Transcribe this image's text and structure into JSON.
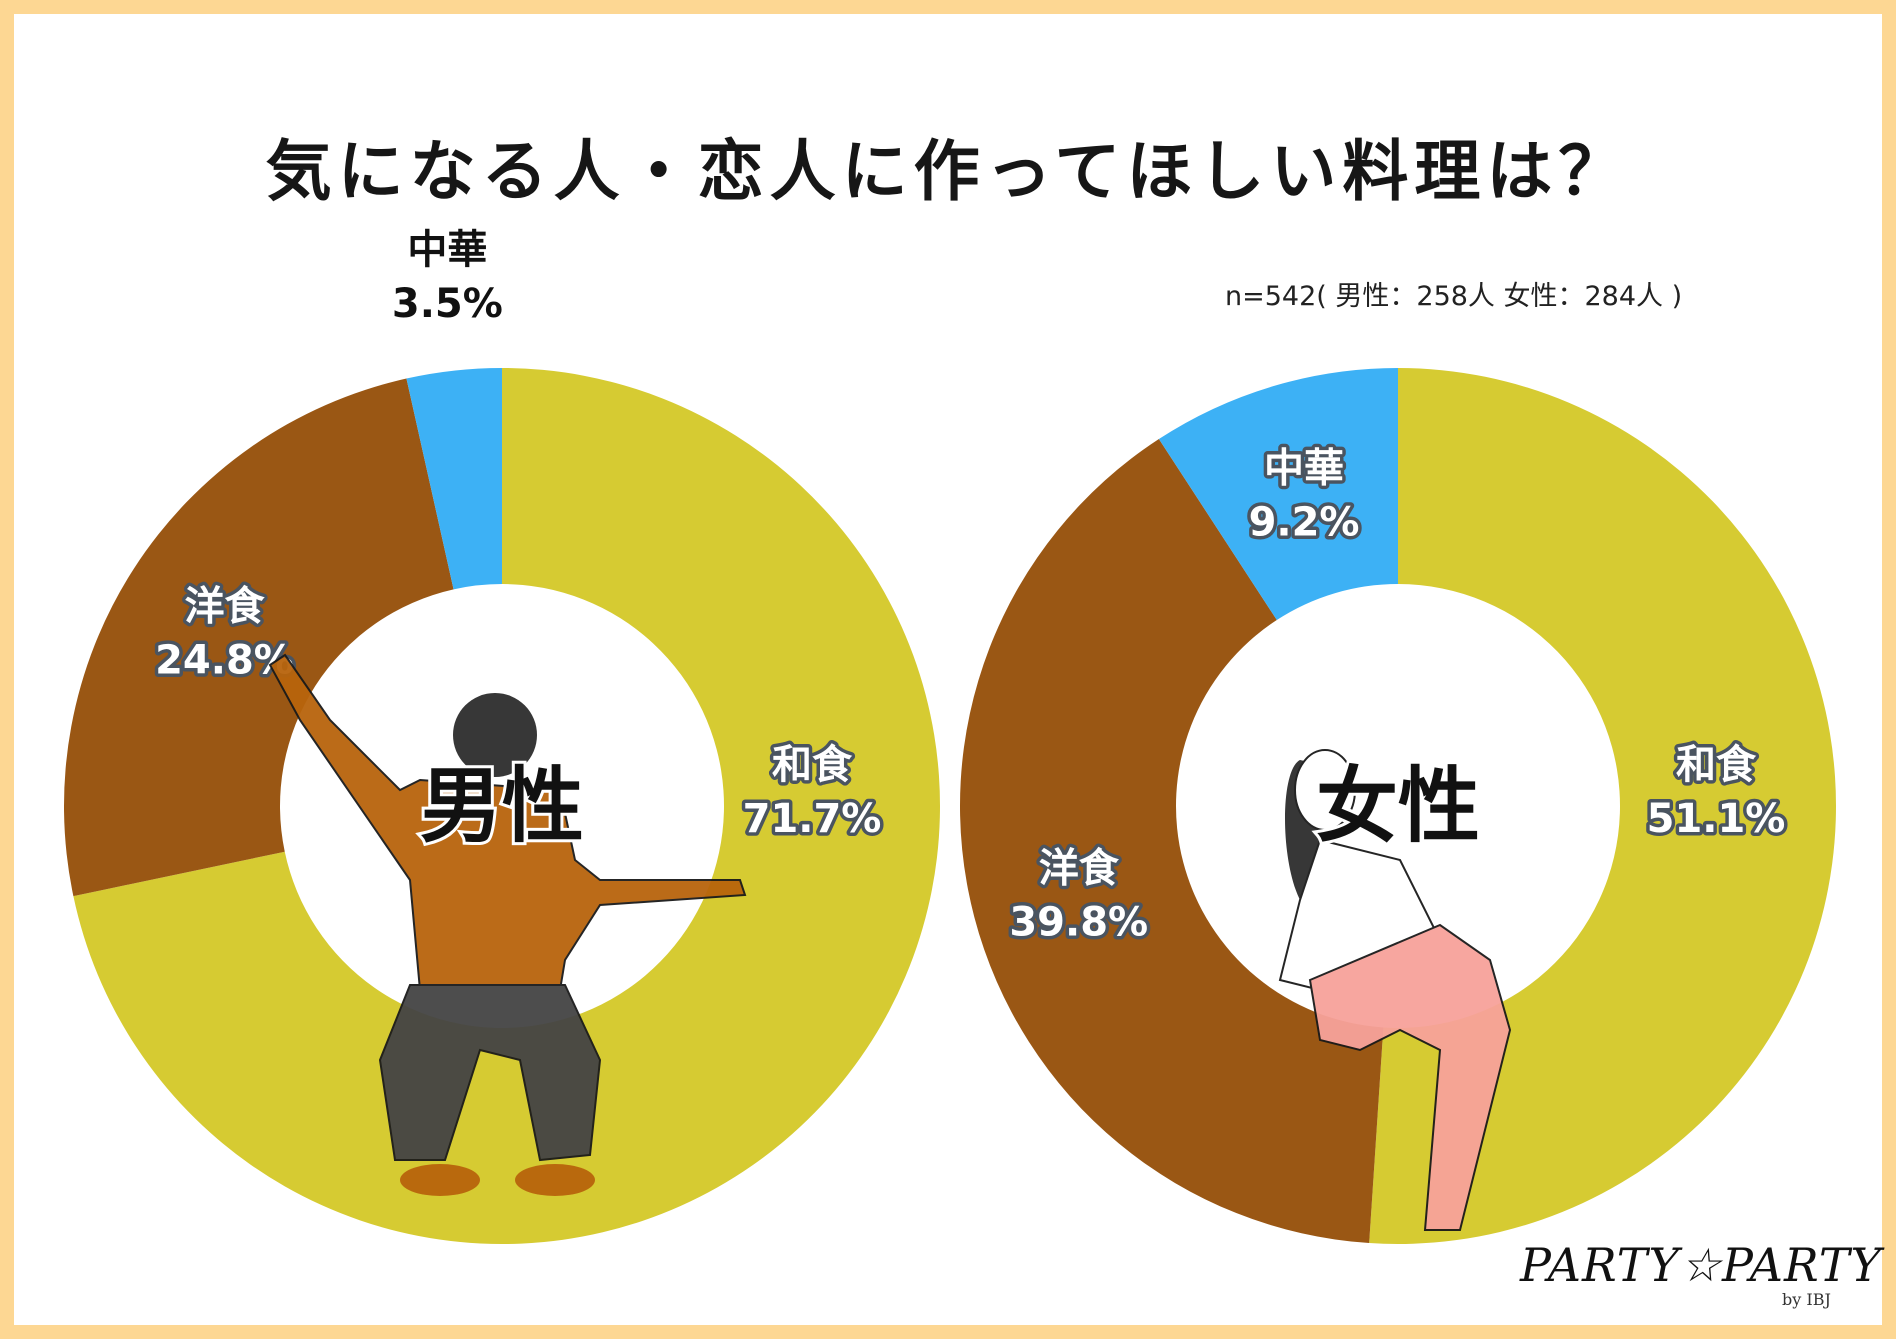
{
  "title": "気になる人・恋人に作ってほしい料理は？",
  "sample_note": "n=542( 男性：258人 女性：284人 )",
  "colors": {
    "washoku": "#d6cb32",
    "yoshoku": "#9a5714",
    "chuka": "#3db1f5"
  },
  "chart_data": [
    {
      "type": "pie",
      "center_label": "男性",
      "categories": [
        "和食",
        "洋食",
        "中華"
      ],
      "values": [
        71.7,
        24.8,
        3.5
      ],
      "value_labels": [
        "71.7%",
        "24.8%",
        "3.5%"
      ]
    },
    {
      "type": "pie",
      "center_label": "女性",
      "categories": [
        "和食",
        "洋食",
        "中華"
      ],
      "values": [
        51.1,
        39.8,
        9.2
      ],
      "value_labels": [
        "51.1%",
        "39.8%",
        "9.2%"
      ]
    }
  ],
  "logo": {
    "brand": "PARTY☆PARTY",
    "sub": "by IBJ"
  }
}
